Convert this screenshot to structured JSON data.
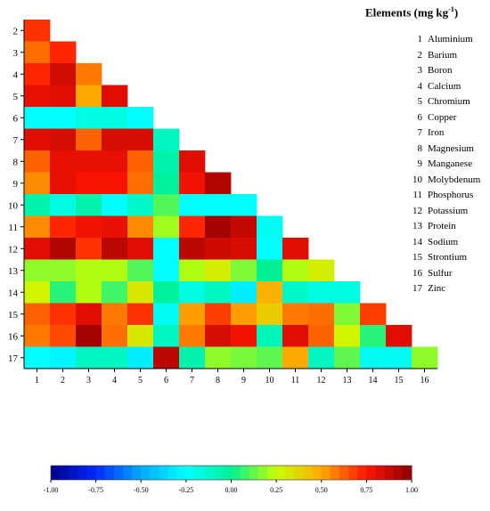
{
  "chart_data": {
    "type": "heatmap",
    "title": "",
    "x_ticks": [
      "1",
      "2",
      "3",
      "4",
      "5",
      "6",
      "7",
      "8",
      "9",
      "10",
      "11",
      "12",
      "13",
      "14",
      "15",
      "16"
    ],
    "y_ticks": [
      "2",
      "3",
      "4",
      "5",
      "6",
      "7",
      "8",
      "9",
      "10",
      "11",
      "12",
      "13",
      "14",
      "15",
      "16",
      "17"
    ],
    "matrix": [
      [
        0.7
      ],
      [
        0.6,
        0.72
      ],
      [
        0.72,
        0.85,
        0.58
      ],
      [
        0.8,
        0.82,
        0.5,
        0.82
      ],
      [
        -0.25,
        -0.25,
        -0.18,
        -0.18,
        -0.25
      ],
      [
        0.82,
        0.84,
        0.62,
        0.84,
        0.84,
        -0.1
      ],
      [
        0.62,
        0.8,
        0.8,
        0.8,
        0.62,
        -0.05,
        0.82
      ],
      [
        0.55,
        0.8,
        0.76,
        0.76,
        0.6,
        -0.02,
        0.78,
        0.92
      ],
      [
        -0.05,
        -0.18,
        -0.05,
        -0.25,
        -0.12,
        0.1,
        -0.25,
        -0.25,
        -0.25
      ],
      [
        0.55,
        0.72,
        0.78,
        0.8,
        0.55,
        0.2,
        0.72,
        0.95,
        0.88,
        -0.22
      ],
      [
        0.82,
        0.92,
        0.7,
        0.9,
        0.82,
        -0.25,
        0.9,
        0.86,
        0.84,
        -0.25,
        0.82
      ],
      [
        0.18,
        0.18,
        0.22,
        0.22,
        0.1,
        -0.25,
        0.22,
        0.3,
        0.16,
        0.0,
        0.22,
        0.3
      ],
      [
        0.28,
        0.05,
        0.22,
        0.08,
        0.32,
        -0.02,
        -0.18,
        -0.1,
        -0.3,
        0.48,
        -0.12,
        -0.18,
        -0.18
      ],
      [
        0.62,
        0.7,
        0.82,
        0.58,
        0.7,
        -0.22,
        0.52,
        0.68,
        0.52,
        0.4,
        0.58,
        0.6,
        0.16,
        0.68
      ],
      [
        0.58,
        0.66,
        0.95,
        0.6,
        0.32,
        -0.1,
        0.58,
        0.84,
        0.78,
        -0.08,
        0.82,
        0.62,
        0.28,
        0.05,
        0.82
      ],
      [
        -0.25,
        -0.28,
        -0.1,
        -0.1,
        -0.3,
        0.9,
        -0.05,
        0.18,
        0.15,
        0.12,
        0.5,
        -0.1,
        0.12,
        -0.22,
        -0.22,
        0.18
      ]
    ],
    "colorbar": {
      "min": -1.0,
      "max": 1.0,
      "ticks": [
        "-1.00",
        "-0.75",
        "-0.50",
        "-0.25",
        "0.00",
        "0.25",
        "0.50",
        "0.75",
        "1.00"
      ]
    },
    "legend_title": "Elements (mg kg",
    "legend_title_sup": "-1",
    "legend_title_end": ")",
    "elements": [
      {
        "num": "1",
        "name": "Aluminium"
      },
      {
        "num": "2",
        "name": "Barium"
      },
      {
        "num": "3",
        "name": "Boron"
      },
      {
        "num": "4",
        "name": "Calcium"
      },
      {
        "num": "5",
        "name": "Chromium"
      },
      {
        "num": "6",
        "name": "Copper"
      },
      {
        "num": "7",
        "name": "Iron"
      },
      {
        "num": "8",
        "name": "Magnesium"
      },
      {
        "num": "9",
        "name": "Manganese"
      },
      {
        "num": "10",
        "name": "Molybdenum"
      },
      {
        "num": "11",
        "name": "Phosphorus"
      },
      {
        "num": "12",
        "name": "Potassium"
      },
      {
        "num": "13",
        "name": "Protein"
      },
      {
        "num": "14",
        "name": "Sodium"
      },
      {
        "num": "15",
        "name": "Strontium"
      },
      {
        "num": "16",
        "name": "Sulfur"
      },
      {
        "num": "17",
        "name": "Zinc"
      }
    ],
    "grid": false,
    "legend_position": "top-right"
  }
}
